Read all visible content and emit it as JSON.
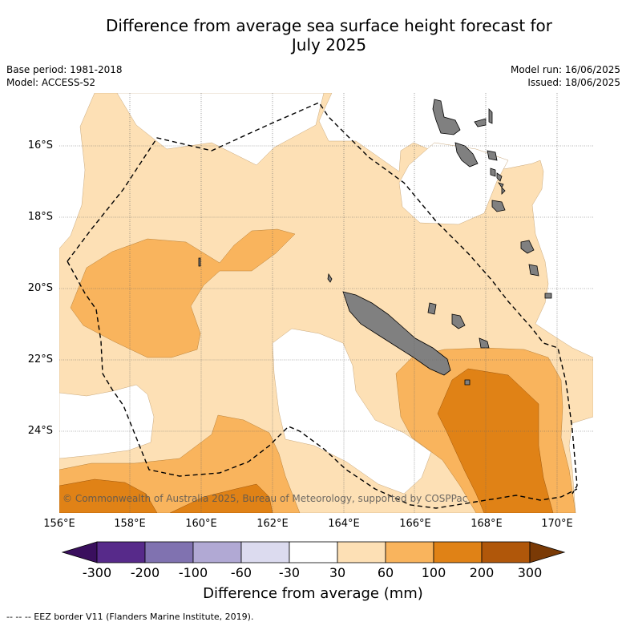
{
  "title": {
    "line1": "Difference from average sea surface height forecast for",
    "line2": "July 2025"
  },
  "meta": {
    "base_period": "Base period: 1981-2018",
    "model": "Model: ACCESS-S2",
    "model_run": "Model run: 16/06/2025",
    "issued": "Issued: 18/06/2025"
  },
  "map": {
    "lat_ticks": [
      "16°S",
      "18°S",
      "20°S",
      "22°S",
      "24°S"
    ],
    "lon_ticks": [
      "156°E",
      "158°E",
      "160°E",
      "162°E",
      "164°E",
      "166°E",
      "168°E",
      "170°E"
    ],
    "copyright": "© Commonwealth of Australia 2025, Bureau of Meteorology, supported by COSPPac",
    "colors": {
      "level_30_60": "#fde0b5",
      "level_60_100": "#f9b45d",
      "level_100_200": "#e08216",
      "land": "#808080",
      "eez_border": "#000000"
    }
  },
  "colorbar": {
    "label": "Difference from average (mm)",
    "ticks": [
      "-300",
      "-200",
      "-100",
      "-60",
      "-30",
      "30",
      "60",
      "100",
      "200",
      "300"
    ],
    "colors": [
      "#3a0f5e",
      "#572a8a",
      "#8072b0",
      "#b1a9d4",
      "#dcdbef",
      "#ffffff",
      "#fde0b5",
      "#f9b45d",
      "#e08216",
      "#b0570a",
      "#7a3a06"
    ]
  },
  "legend_note": "--  --  -- EEZ border V11 (Flanders Marine Institute, 2019)."
}
